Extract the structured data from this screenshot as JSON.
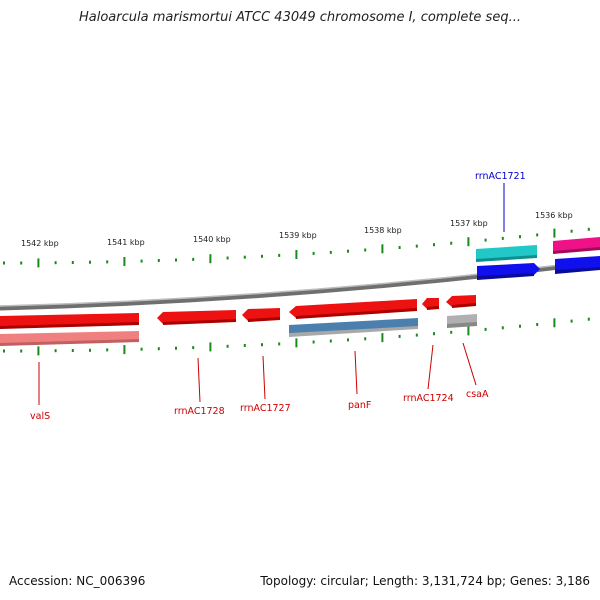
{
  "title": "Haloarcula marismortui ATCC 43049 chromosome I, complete seq...",
  "footer": {
    "accession": "Accession: NC_006396",
    "summary": "Topology: circular; Length: 3,131,724 bp; Genes: 3,186"
  },
  "ruler": {
    "labels": [
      "1542 kbp",
      "1541 kbp",
      "1540 kbp",
      "1539 kbp",
      "1538 kbp",
      "1537 kbp",
      "1536 kbp"
    ]
  },
  "gene_labels": {
    "top": {
      "text": "rrnAC1721",
      "color": "#0000cc"
    },
    "bottom": [
      {
        "text": "valS",
        "color": "#cc0000"
      },
      {
        "text": "rrnAC1728",
        "color": "#cc0000"
      },
      {
        "text": "rrnAC1727",
        "color": "#cc0000"
      },
      {
        "text": "panF",
        "color": "#cc0000"
      },
      {
        "text": "rrnAC1724",
        "color": "#cc0000"
      },
      {
        "text": "csaA",
        "color": "#cc0000"
      }
    ]
  },
  "colors": {
    "backbone": "#8a8a8a",
    "tick": "#1a8a1a",
    "red_gene": "#ee1111",
    "pink_gene": "#f08080",
    "cyan_gene": "#22c8c8",
    "blue_gene": "#1010ee",
    "magenta_gene": "#ee1188",
    "steel_gene": "#4a7fae",
    "grey_gene": "#b0b0b0"
  }
}
